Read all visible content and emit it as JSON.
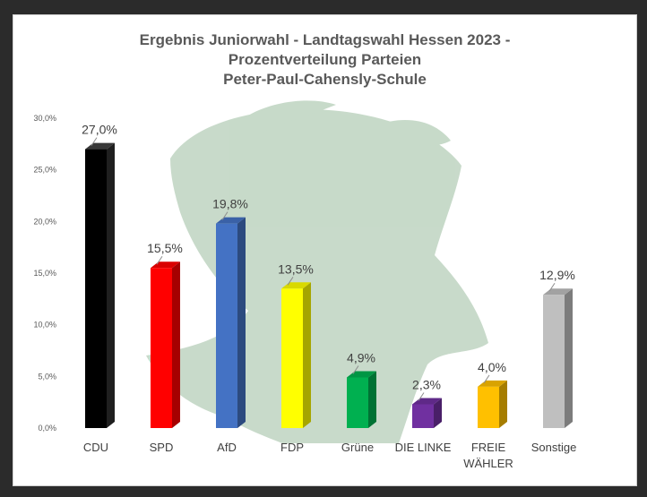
{
  "chart_data": {
    "type": "bar",
    "title": [
      "Ergebnis Juniorwahl - Landtagswahl Hessen 2023 -",
      "Prozentverteilung Parteien",
      "Peter-Paul-Cahensly-Schule"
    ],
    "categories": [
      "CDU",
      "SPD",
      "AfD",
      "FDP",
      "Grüne",
      "DIE LINKE",
      "FREIE WÄHLER",
      "Sonstige"
    ],
    "category_lines": [
      [
        "CDU"
      ],
      [
        "SPD"
      ],
      [
        "AfD"
      ],
      [
        "FDP"
      ],
      [
        "Grüne"
      ],
      [
        "DIE LINKE"
      ],
      [
        "FREIE",
        "WÄHLER"
      ],
      [
        "Sonstige"
      ]
    ],
    "values": [
      27.0,
      15.5,
      19.8,
      13.5,
      4.9,
      2.3,
      4.0,
      12.9
    ],
    "data_labels": [
      "27,0%",
      "15,5%",
      "19,8%",
      "13,5%",
      "4,9%",
      "2,3%",
      "4,0%",
      "12,9%"
    ],
    "colors": [
      "#000000",
      "#ff0000",
      "#4472c4",
      "#ffff00",
      "#00b050",
      "#7030a0",
      "#ffc000",
      "#bfbfbf"
    ],
    "ylim": [
      0,
      30
    ],
    "yticks": [
      0,
      5,
      10,
      15,
      20,
      25,
      30
    ],
    "ytick_labels": [
      "0,0%",
      "5,0%",
      "10,0%",
      "15,0%",
      "20,0%",
      "25,0%",
      "30,0%"
    ],
    "grid": false,
    "legend": "none",
    "style": "3d-column",
    "watermark": "portrait-silhouette"
  }
}
